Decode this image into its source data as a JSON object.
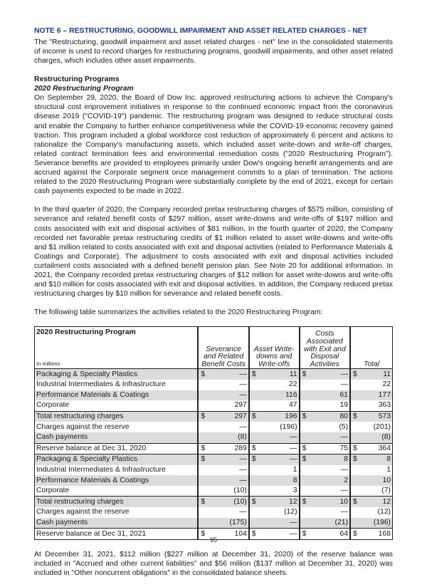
{
  "title": "NOTE 6 – RESTRUCTURING, GOODWILL IMPAIRMENT AND ASSET RELATED CHARGES - NET",
  "intro": "The \"Restructuring, goodwill impairment and asset related charges - net\" line in the consolidated statements of income is used to record charges for restructuring programs, goodwill impairments, and other asset related charges, which includes other asset impairments.",
  "section_heading": "Restructuring Programs",
  "subsection_heading": "2020 Restructuring Program",
  "para1": "On September 29, 2020, the Board of Dow Inc. approved restructuring actions to achieve the Company's structural cost improvement initiatives in response to the continued economic impact from the coronavirus disease 2019 (\"COVID-19\") pandemic. The restructuring program was designed to reduce structural costs and enable the Company to further enhance competitiveness while the COVID-19 economic recovery gained traction. This program included a global workforce cost reduction of approximately 6 percent and actions to rationalize the Company's manufacturing assets, which included asset write-down and write-off charges, related contract termination fees and environmental remediation costs (\"2020 Restructuring Program\"). Severance benefits are provided to employees primarily under Dow's ongoing benefit arrangements and are accrued against the Corporate segment once management commits to a plan of termination. The actions related to the 2020 Restructuring Program were substantially complete by the end of 2021, except for certain cash payments expected to be made in 2022.",
  "para2": "In the third quarter of 2020, the Company recorded pretax restructuring charges of $575 million, consisting of severance and related benefit costs of $297 million, asset write-downs and write-offs of $197 million and costs associated with exit and disposal activities of $81 million. In the fourth quarter of 2020, the Company recorded net favorable pretax restructuring credits of $1 million related to asset write-downs and write-offs and $1 million related to costs associated with exit and disposal activities (related to Performance Materials & Coatings and Corporate). The adjustment to costs associated with exit and disposal activities included curtailment costs associated with a defined benefit pension plan. See Note 20 for additional information. In 2021, the Company recorded pretax restructuring charges of $12 million for asset write-downs and write-offs and $10 million for costs associated with exit and disposal activities. In addition, the Company reduced pretax restructuring charges by $10 million for severance and related benefit costs.",
  "para3": "The following table summarizes the activities related to the 2020 Restructuring Program:",
  "table": {
    "title": "2020 Restructuring Program",
    "units": "In millions",
    "columns": [
      "Severance and Related Benefit Costs",
      "Asset Write-downs and Write-offs",
      "Costs Associated with Exit and Disposal Activities",
      "Total"
    ],
    "rows": [
      {
        "label": "Packaging & Specialty Plastics",
        "dollar": true,
        "values": [
          "—",
          "11",
          "—",
          "11"
        ]
      },
      {
        "label": "Industrial Intermediates & Infrastructure",
        "dollar": false,
        "values": [
          "—",
          "22",
          "—",
          "22"
        ]
      },
      {
        "label": "Performance Materials & Coatings",
        "dollar": false,
        "values": [
          "—",
          "116",
          "61",
          "177"
        ]
      },
      {
        "label": "Corporate",
        "dollar": false,
        "values": [
          "297",
          "47",
          "19",
          "363"
        ]
      },
      {
        "label": "Total restructuring charges",
        "dollar": true,
        "values": [
          "297",
          "196",
          "80",
          "573"
        ]
      },
      {
        "label": "Charges against the reserve",
        "dollar": false,
        "values": [
          "—",
          "(196)",
          "(5)",
          "(201)"
        ]
      },
      {
        "label": "Cash payments",
        "dollar": false,
        "values": [
          "(8)",
          "—",
          "—",
          "(8)"
        ]
      },
      {
        "label": "Reserve balance at Dec 31, 2020",
        "dollar": true,
        "values": [
          "289",
          "—",
          "75",
          "364"
        ]
      },
      {
        "label": "Packaging & Specialty Plastics",
        "dollar": true,
        "values": [
          "—",
          "—",
          "8",
          "8"
        ]
      },
      {
        "label": "Industrial Intermediates & Infrastructure",
        "dollar": false,
        "values": [
          "—",
          "1",
          "—",
          "1"
        ]
      },
      {
        "label": "Performance Materials & Coatings",
        "dollar": false,
        "values": [
          "—",
          "8",
          "2",
          "10"
        ]
      },
      {
        "label": "Corporate",
        "dollar": false,
        "values": [
          "(10)",
          "3",
          "—",
          "(7)"
        ]
      },
      {
        "label": "Total restructuring charges",
        "dollar": true,
        "values": [
          "(10)",
          "12",
          "10",
          "12"
        ]
      },
      {
        "label": "Charges against the reserve",
        "dollar": false,
        "values": [
          "—",
          "(12)",
          "—",
          "(12)"
        ]
      },
      {
        "label": "Cash payments",
        "dollar": false,
        "values": [
          "(175)",
          "—",
          "(21)",
          "(196)"
        ]
      },
      {
        "label": "Reserve balance at Dec 31, 2021",
        "dollar": true,
        "values": [
          "104",
          "—",
          "64",
          "168"
        ]
      }
    ]
  },
  "para4": "At December 31, 2021, $112 million ($227 million at December 31, 2020) of the reserve balance was included in \"Accrued and other current liabilities\" and $56 million ($137 million at December 31, 2020) was included in \"Other noncurrent obligations\" in the consolidated balance sheets.",
  "page_number": "95",
  "colors": {
    "title": "#1b3a8c",
    "row_shade": "#dcdcdc"
  }
}
